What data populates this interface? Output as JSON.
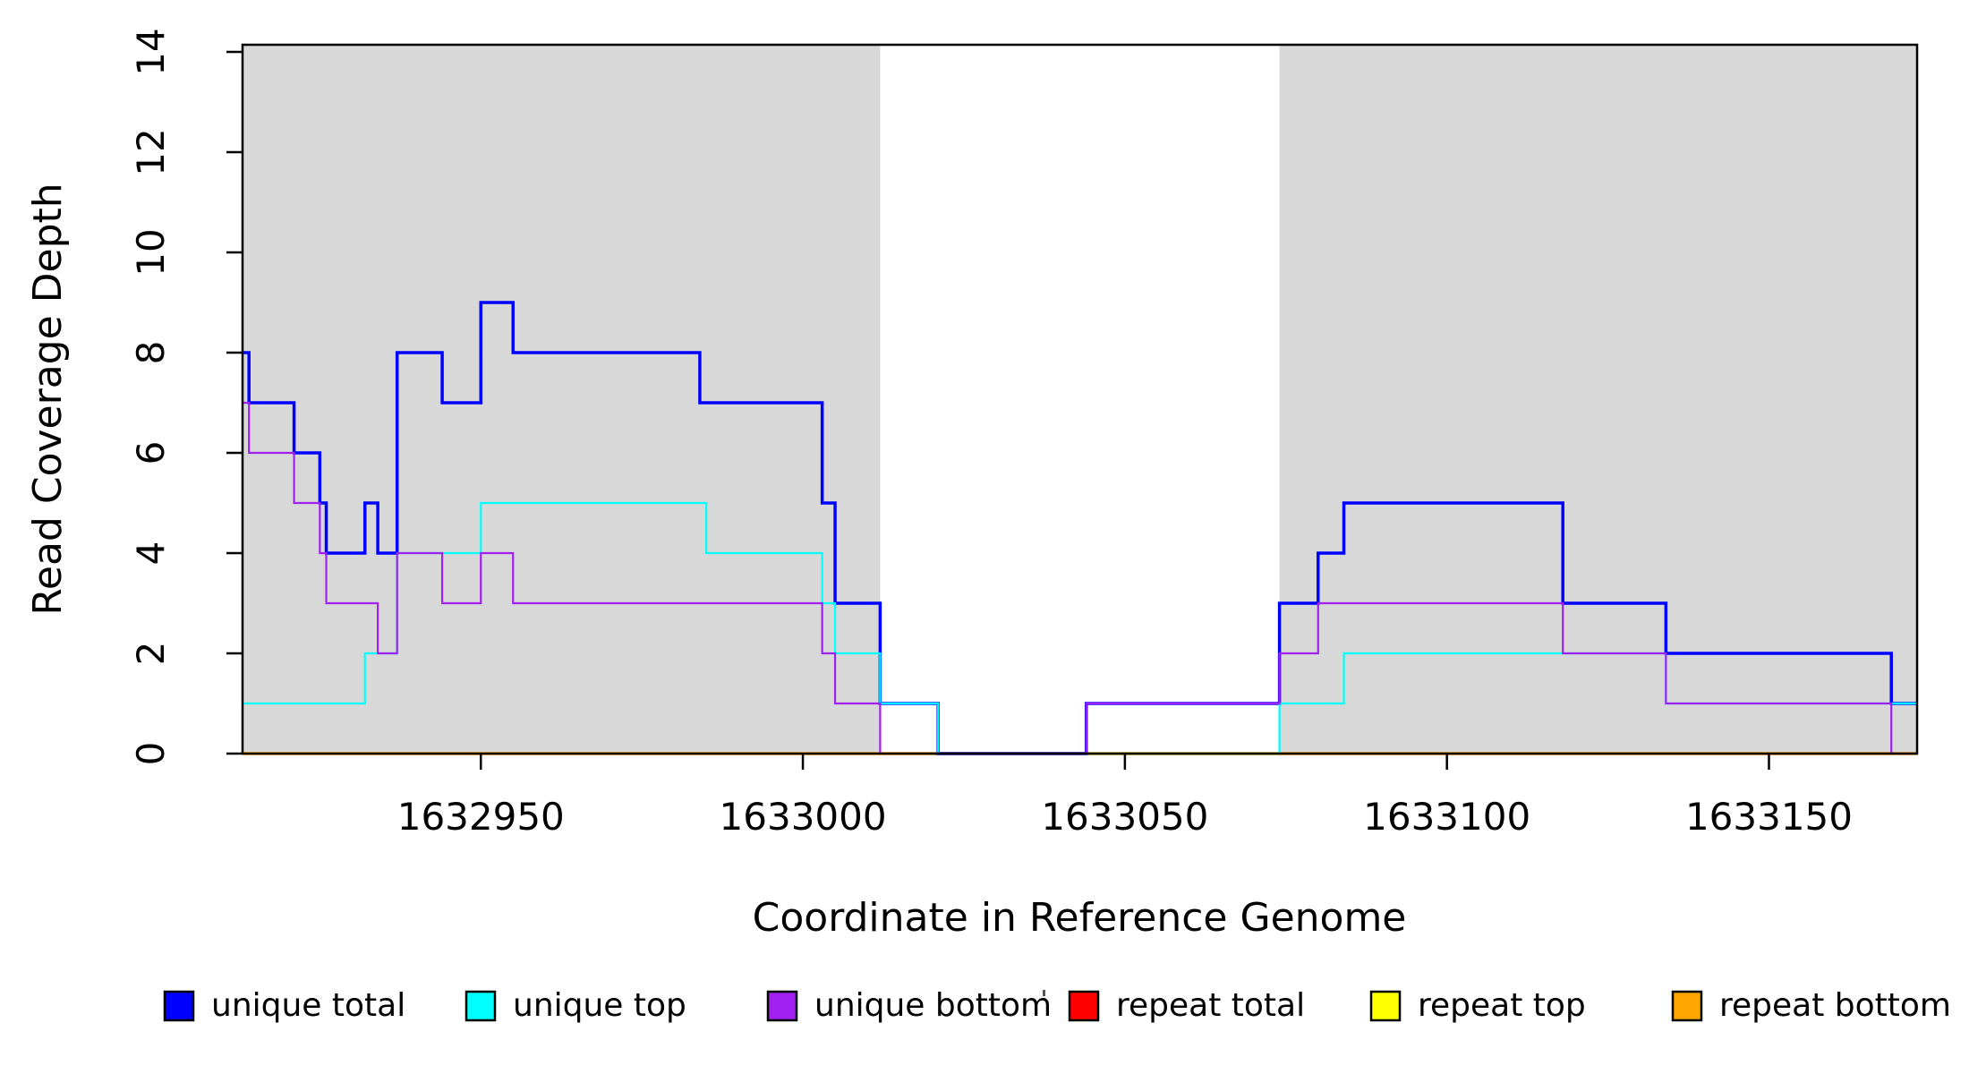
{
  "chart_data": {
    "type": "line",
    "subtype": "step",
    "title": "",
    "xlabel": "Coordinate in Reference Genome",
    "ylabel": "Read Coverage Depth",
    "xlim": [
      1632913,
      1633173
    ],
    "ylim": [
      0,
      14.15
    ],
    "x_ticks": [
      1632950,
      1633000,
      1633050,
      1633100,
      1633150
    ],
    "y_ticks": [
      0,
      2,
      4,
      6,
      8,
      10,
      12,
      14
    ],
    "grid": false,
    "legend_position": "bottom",
    "shaded_regions": [
      {
        "name": "left-gray-block",
        "from": 1632913,
        "to": 1633012,
        "color": "#d8d8d8"
      },
      {
        "name": "right-gray-block",
        "from": 1633074,
        "to": 1633173,
        "color": "#d8d8d8"
      }
    ],
    "series": [
      {
        "name": "unique total",
        "color": "#0000ff",
        "width": 3.5,
        "steps": [
          [
            1632913,
            8
          ],
          [
            1632914,
            7
          ],
          [
            1632921,
            6
          ],
          [
            1632925,
            5
          ],
          [
            1632926,
            4
          ],
          [
            1632932,
            5
          ],
          [
            1632934,
            4
          ],
          [
            1632937,
            8
          ],
          [
            1632944,
            7
          ],
          [
            1632950,
            9
          ],
          [
            1632955,
            8
          ],
          [
            1632984,
            7
          ],
          [
            1633003,
            5
          ],
          [
            1633005,
            3
          ],
          [
            1633012,
            1
          ],
          [
            1633021,
            0
          ],
          [
            1633044,
            1
          ],
          [
            1633074,
            3
          ],
          [
            1633080,
            4
          ],
          [
            1633084,
            5
          ],
          [
            1633118,
            3
          ],
          [
            1633134,
            2
          ],
          [
            1633169,
            1
          ]
        ]
      },
      {
        "name": "unique top",
        "color": "#00ffff",
        "width": 2.2,
        "steps": [
          [
            1632913,
            1
          ],
          [
            1632932,
            2
          ],
          [
            1632937,
            4
          ],
          [
            1632950,
            5
          ],
          [
            1632985,
            4
          ],
          [
            1633003,
            3
          ],
          [
            1633005,
            2
          ],
          [
            1633012,
            1
          ],
          [
            1633021,
            0
          ],
          [
            1633074,
            1
          ],
          [
            1633084,
            2
          ],
          [
            1633134,
            1
          ]
        ]
      },
      {
        "name": "unique bottom",
        "color": "#a020f0",
        "width": 2.2,
        "steps": [
          [
            1632913,
            7
          ],
          [
            1632914,
            6
          ],
          [
            1632921,
            5
          ],
          [
            1632925,
            4
          ],
          [
            1632926,
            3
          ],
          [
            1632934,
            2
          ],
          [
            1632937,
            4
          ],
          [
            1632944,
            3
          ],
          [
            1632950,
            4
          ],
          [
            1632955,
            3
          ],
          [
            1633003,
            2
          ],
          [
            1633005,
            1
          ],
          [
            1633012,
            0
          ],
          [
            1633044,
            1
          ],
          [
            1633074,
            2
          ],
          [
            1633080,
            3
          ],
          [
            1633118,
            2
          ],
          [
            1633134,
            1
          ],
          [
            1633169,
            0
          ]
        ]
      },
      {
        "name": "repeat total",
        "color": "#ff0000",
        "width": 2.5,
        "steps": [
          [
            1632913,
            0
          ]
        ]
      },
      {
        "name": "repeat top",
        "color": "#ffff00",
        "width": 2.5,
        "steps": [
          [
            1632913,
            0
          ]
        ]
      },
      {
        "name": "repeat bottom",
        "color": "#ffa500",
        "width": 3.5,
        "steps": [
          [
            1632913,
            0
          ]
        ]
      }
    ],
    "legend": [
      {
        "label": "unique total",
        "color": "#0000ff"
      },
      {
        "label": "unique top",
        "color": "#00ffff"
      },
      {
        "label": "unique bottom",
        "color": "#a020f0"
      },
      {
        "label": "repeat total",
        "color": "#ff0000"
      },
      {
        "label": "repeat top",
        "color": "#ffff00"
      },
      {
        "label": "repeat bottom",
        "color": "#ffa500"
      }
    ],
    "axis_color": "#000000"
  }
}
